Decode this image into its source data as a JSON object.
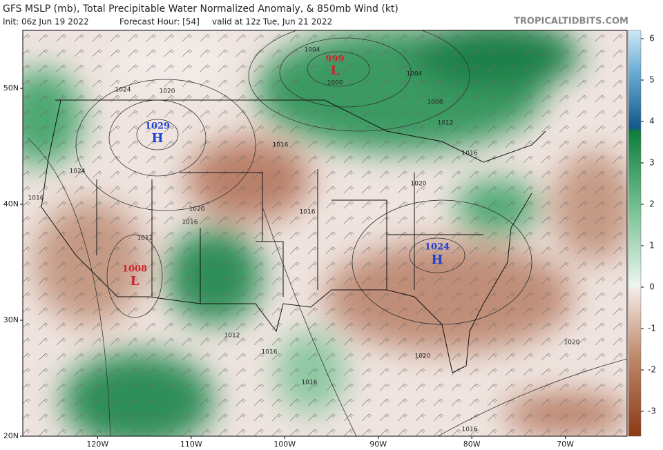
{
  "header": {
    "title": "GFS MSLP (mb), Total Precipitable Water Normalized Anomaly, & 850mb Wind (kt)",
    "init": "Init: 06z Jun 19 2022",
    "forecast_hour": "Forecast Hour: [54]",
    "valid": "valid at 12z Tue, Jun 21 2022",
    "brand": "TROPICALTIDBITS.COM"
  },
  "map": {
    "xlim": [
      -128,
      -63.4
    ],
    "ylim": [
      20,
      55
    ],
    "xticks": [
      {
        "value": -120,
        "label": "120W"
      },
      {
        "value": -110,
        "label": "110W"
      },
      {
        "value": -100,
        "label": "100W"
      },
      {
        "value": -90,
        "label": "90W"
      },
      {
        "value": -80,
        "label": "80W"
      },
      {
        "value": -70,
        "label": "70W"
      }
    ],
    "yticks": [
      {
        "value": 20,
        "label": "20N"
      },
      {
        "value": 30,
        "label": "30N"
      },
      {
        "value": 40,
        "label": "40N"
      },
      {
        "value": 50,
        "label": "50N"
      }
    ],
    "centers": [
      {
        "kind": "H",
        "value": "1029"
      },
      {
        "kind": "L",
        "value": "999"
      },
      {
        "kind": "H",
        "value": "1024"
      },
      {
        "kind": "L",
        "value": "1008"
      }
    ],
    "isobar_labels": [
      "1004",
      "1000",
      "1004",
      "1008",
      "1012",
      "1016",
      "1020",
      "1024",
      "1024",
      "1016",
      "1020",
      "1016",
      "1012",
      "1016",
      "1020",
      "1016",
      "1012",
      "1016",
      "1016",
      "1020",
      "1020",
      "1016"
    ]
  },
  "colorbar": {
    "lim": [
      -3.6,
      6.2
    ],
    "ticks": [
      6,
      5,
      4,
      3,
      2,
      1,
      0,
      -1,
      -2,
      -3
    ]
  }
}
